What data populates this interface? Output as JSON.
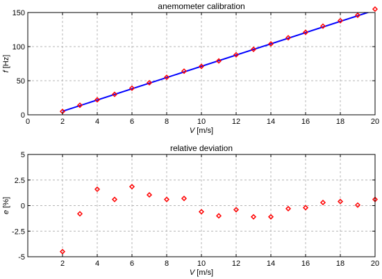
{
  "chart_data": [
    {
      "type": "line",
      "title": "anemometer calibration",
      "xlabel": {
        "symbol": "V",
        "unit": " [m/s]"
      },
      "ylabel": {
        "symbol": "f",
        "unit": " [Hz]"
      },
      "xlim": [
        0,
        20
      ],
      "ylim": [
        0,
        150
      ],
      "xticks": [
        0,
        2,
        4,
        6,
        8,
        10,
        12,
        14,
        16,
        18,
        20
      ],
      "yticks": [
        0,
        50,
        100,
        150
      ],
      "ytick_labels": [
        "0",
        "50",
        "100",
        "150"
      ],
      "grid": true,
      "series": [
        {
          "kind": "fit-line",
          "color": "#0000ff",
          "x": [
            2,
            20
          ],
          "y": [
            5.2,
            153.5
          ]
        },
        {
          "kind": "markers",
          "marker": "diamond",
          "color": "#ff0000",
          "x": [
            2,
            3,
            4,
            5,
            6,
            7,
            8,
            9,
            10,
            11,
            12,
            13,
            14,
            15,
            16,
            17,
            18,
            19,
            20
          ],
          "y": [
            5,
            14,
            22,
            30,
            39,
            47,
            55,
            64,
            71,
            79,
            88,
            96,
            104,
            113,
            121,
            130,
            138,
            146,
            155
          ]
        }
      ]
    },
    {
      "type": "scatter",
      "title": "relative deviation",
      "xlabel": {
        "symbol": "V",
        "unit": " [m/s]"
      },
      "ylabel": {
        "symbol": "e",
        "unit": " [%]"
      },
      "xlim": [
        0,
        20
      ],
      "ylim": [
        -5,
        5
      ],
      "xticks": [
        2,
        4,
        6,
        8,
        10,
        12,
        14,
        16,
        18,
        20
      ],
      "yticks": [
        -5,
        -2.5,
        0,
        2.5,
        5
      ],
      "ytick_labels": [
        "-5",
        "-2.5",
        "0",
        "2.5",
        "5"
      ],
      "grid": true,
      "series": [
        {
          "kind": "markers",
          "marker": "diamond",
          "color": "#ff0000",
          "x": [
            2,
            3,
            4,
            5,
            6,
            7,
            8,
            9,
            10,
            11,
            12,
            13,
            14,
            15,
            16,
            17,
            18,
            19,
            20
          ],
          "y": [
            -4.5,
            -0.8,
            1.6,
            0.6,
            1.85,
            1.05,
            0.6,
            0.7,
            -0.6,
            -1.0,
            -0.4,
            -1.1,
            -1.1,
            -0.3,
            -0.2,
            0.3,
            0.4,
            0.05,
            0.6
          ]
        }
      ]
    }
  ]
}
